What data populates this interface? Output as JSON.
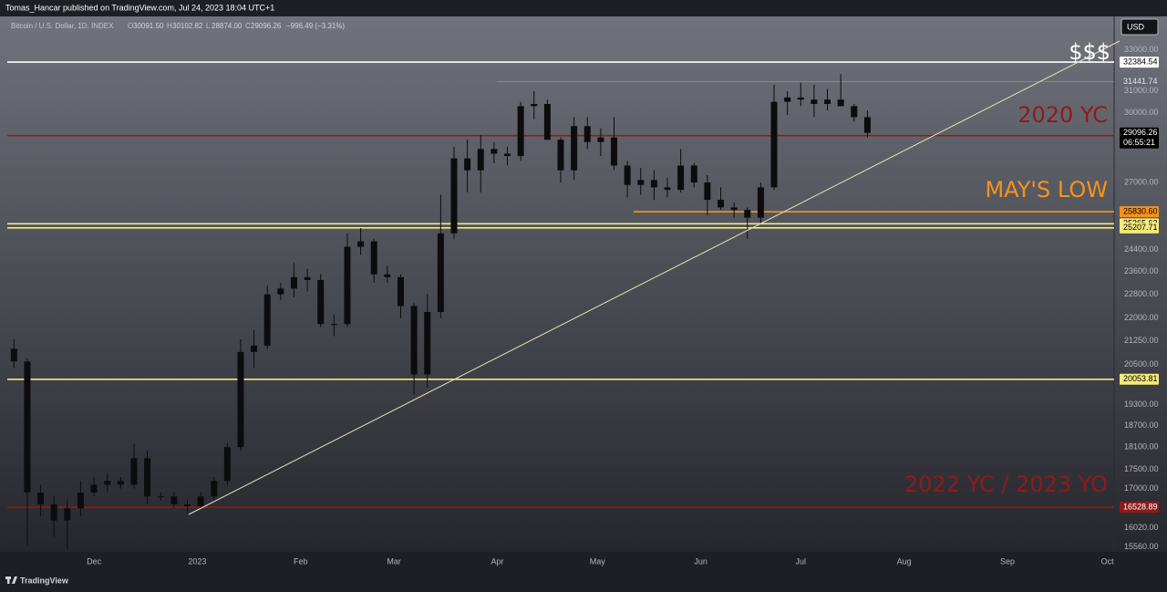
{
  "header": {
    "text": "Tomas_Hancar published on TradingView.com, Jul 24, 2023 18:04 UTC+1"
  },
  "legend": {
    "symbol": "Bitcoin / U.S. Dollar, 1D, INDEX",
    "letters": [
      "O",
      "H",
      "L",
      "C"
    ],
    "ohlc": [
      "30091.50",
      "30102.82",
      "28874.00",
      "29096.26"
    ],
    "change": "−996.49 (−3.31%)"
  },
  "currency": "USD",
  "footer": {
    "brand": "TradingView"
  },
  "chart_data": {
    "type": "candlestick",
    "log_scale": true,
    "grid": false,
    "candle_color": "#0c0c0e",
    "open": [
      21000,
      20600,
      16900,
      16600,
      16200,
      16500,
      16900,
      17100,
      17200,
      17100,
      17800,
      16800,
      16800,
      16600,
      16550,
      16800,
      17200,
      18100,
      20900,
      21100,
      22800,
      23000,
      23400,
      23300,
      21800,
      21800,
      24500,
      24700,
      23500,
      23400,
      22400,
      20200,
      22200,
      25000,
      28000,
      27500,
      28400,
      28200,
      28100,
      30300,
      30400,
      28800,
      27500,
      29400,
      28700,
      28900,
      27700,
      26900,
      27100,
      26800,
      26700,
      27700,
      27000,
      26300,
      26000,
      25900,
      25600,
      26800,
      30500,
      30700,
      30600,
      30400,
      30600,
      30300,
      29800
    ],
    "high": [
      21300,
      20700,
      17100,
      16800,
      16700,
      17200,
      17300,
      17400,
      17300,
      18200,
      18000,
      16900,
      16900,
      16700,
      16900,
      17300,
      18200,
      21300,
      21600,
      23100,
      23200,
      23900,
      23700,
      23500,
      22100,
      25000,
      25200,
      24800,
      23800,
      23500,
      22500,
      22800,
      26500,
      28500,
      28800,
      29000,
      28700,
      28500,
      30500,
      31000,
      30600,
      28900,
      29800,
      29800,
      29300,
      29800,
      27900,
      27600,
      27500,
      27200,
      28400,
      27800,
      27300,
      26800,
      26200,
      26000,
      27000,
      31300,
      31000,
      31400,
      31300,
      31100,
      31800,
      30400,
      30100
    ],
    "low": [
      20400,
      15600,
      16300,
      15800,
      15500,
      16300,
      16800,
      16900,
      17000,
      17000,
      16600,
      16700,
      16500,
      16400,
      16500,
      16700,
      17100,
      18000,
      20400,
      21000,
      22600,
      22700,
      22900,
      21700,
      21400,
      21700,
      24200,
      23200,
      23200,
      22000,
      19600,
      19800,
      22000,
      24800,
      26600,
      26600,
      27800,
      27700,
      27900,
      29700,
      28800,
      27000,
      27100,
      28400,
      28100,
      27500,
      26400,
      26500,
      26300,
      26400,
      26600,
      26800,
      25700,
      25900,
      25600,
      24800,
      25400,
      26700,
      29900,
      30300,
      29800,
      30100,
      30300,
      29600,
      28900
    ],
    "close": [
      20600,
      16900,
      16600,
      16200,
      16500,
      16900,
      17100,
      17200,
      17100,
      17800,
      16800,
      16800,
      16600,
      16550,
      16800,
      17200,
      18100,
      20900,
      21100,
      22800,
      23000,
      23400,
      23300,
      21800,
      21800,
      24500,
      24700,
      23500,
      23400,
      22400,
      20200,
      22200,
      25000,
      28000,
      27500,
      28400,
      28200,
      28100,
      30300,
      30400,
      28800,
      27500,
      29400,
      28700,
      28900,
      27700,
      26900,
      27100,
      26800,
      26700,
      27700,
      27000,
      26300,
      26000,
      25900,
      25600,
      26800,
      30500,
      30700,
      30600,
      30400,
      30600,
      30300,
      29800,
      29100
    ],
    "xlim": [
      -0.5,
      82.5
    ],
    "xticks": [
      {
        "value": 6,
        "label": "Dec"
      },
      {
        "value": 13.75,
        "label": "2023"
      },
      {
        "value": 21.5,
        "label": "Feb"
      },
      {
        "value": 28.5,
        "label": "Mar"
      },
      {
        "value": 36.25,
        "label": "Apr"
      },
      {
        "value": 43.75,
        "label": "May"
      },
      {
        "value": 51.5,
        "label": "Jun"
      },
      {
        "value": 59,
        "label": "Jul"
      },
      {
        "value": 66.75,
        "label": "Aug"
      },
      {
        "value": 74.5,
        "label": "Sep"
      },
      {
        "value": 82,
        "label": "Oct"
      }
    ],
    "ylim": [
      15450,
      34700
    ],
    "yticks": [
      {
        "value": 33000,
        "label": "33000.00"
      },
      {
        "value": 31000,
        "label": "31000.00"
      },
      {
        "value": 30000,
        "label": "30000.00"
      },
      {
        "value": 27000,
        "label": "27000.00"
      },
      {
        "value": 24400,
        "label": "24400.00"
      },
      {
        "value": 23600,
        "label": "23600.00"
      },
      {
        "value": 22800,
        "label": "22800.00"
      },
      {
        "value": 22000,
        "label": "22000.00"
      },
      {
        "value": 21250,
        "label": "21250.00"
      },
      {
        "value": 20500,
        "label": "20500.00"
      },
      {
        "value": 19300,
        "label": "19300.00"
      },
      {
        "value": 18700,
        "label": "18700.00"
      },
      {
        "value": 18100,
        "label": "18100.00"
      },
      {
        "value": 17500,
        "label": "17500.00"
      },
      {
        "value": 17000,
        "label": "17000.00"
      },
      {
        "value": 16020,
        "label": "16020.00"
      },
      {
        "value": 15560,
        "label": "15560.00"
      }
    ],
    "levels": [
      {
        "value": 32384.54,
        "color": "#ffffff",
        "text_color": "#000000"
      },
      {
        "value": 31441.74,
        "color": "#9a9ca4",
        "text_color": "#e0e3eb"
      },
      {
        "value": 28980.45,
        "color": "#8e1b1b",
        "text_color": "#ffffff"
      },
      {
        "value": 25830.6,
        "label": "25830.60",
        "color": "#f7931a",
        "text_color": "#000000"
      },
      {
        "value": 25365.62,
        "color": "#f5ea7a",
        "text_color": "#000000"
      },
      {
        "value": 25207.71,
        "color": "#f5ea7a",
        "text_color": "#000000"
      },
      {
        "value": 20053.81,
        "color": "#f5ea7a",
        "text_color": "#000000"
      },
      {
        "value": 16528.89,
        "color": "#8e1b1b",
        "text_color": "#ffffff"
      }
    ],
    "last_price": {
      "value": 29096.26,
      "countdown": "06:55:21"
    },
    "annotations": [
      "$$$",
      "2020 YC",
      "MAY'S LOW",
      "2022 YC / 2023 YO"
    ]
  }
}
